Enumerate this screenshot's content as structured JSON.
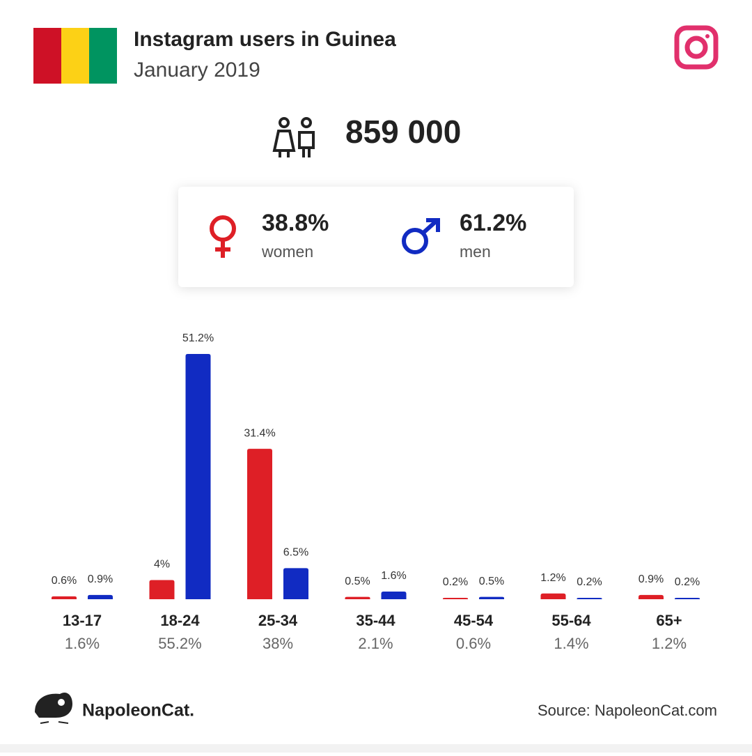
{
  "header": {
    "title": "Instagram users in Guinea",
    "subtitle": "January 2019"
  },
  "summary": {
    "total_users": "859 000",
    "women_share": "38.8%",
    "women_label": "women",
    "men_share": "61.2%",
    "men_label": "men"
  },
  "chart_data": {
    "type": "bar",
    "categories": [
      "13-17",
      "18-24",
      "25-34",
      "35-44",
      "45-54",
      "55-64",
      "65+"
    ],
    "series": [
      {
        "name": "women",
        "color": "#de1f26",
        "values": [
          0.6,
          4,
          31.4,
          0.5,
          0.2,
          1.2,
          0.9
        ],
        "value_labels": [
          "0.6%",
          "4%",
          "31.4%",
          "0.5%",
          "0.2%",
          "1.2%",
          "0.9%"
        ]
      },
      {
        "name": "men",
        "color": "#112bc2",
        "values": [
          0.9,
          51.2,
          6.5,
          1.6,
          0.5,
          0.2,
          0.2
        ],
        "value_labels": [
          "0.9%",
          "51.2%",
          "6.5%",
          "1.6%",
          "0.5%",
          "0.2%",
          "0.2%"
        ]
      }
    ],
    "totals": [
      1.6,
      55.2,
      38,
      2.1,
      0.6,
      1.4,
      1.2
    ],
    "total_labels": [
      "1.6%",
      "55.2%",
      "38%",
      "2.1%",
      "0.6%",
      "1.4%",
      "1.2%"
    ]
  },
  "footer": {
    "brand": "NapoleonCat.",
    "source": "Source: NapoleonCat.com"
  }
}
